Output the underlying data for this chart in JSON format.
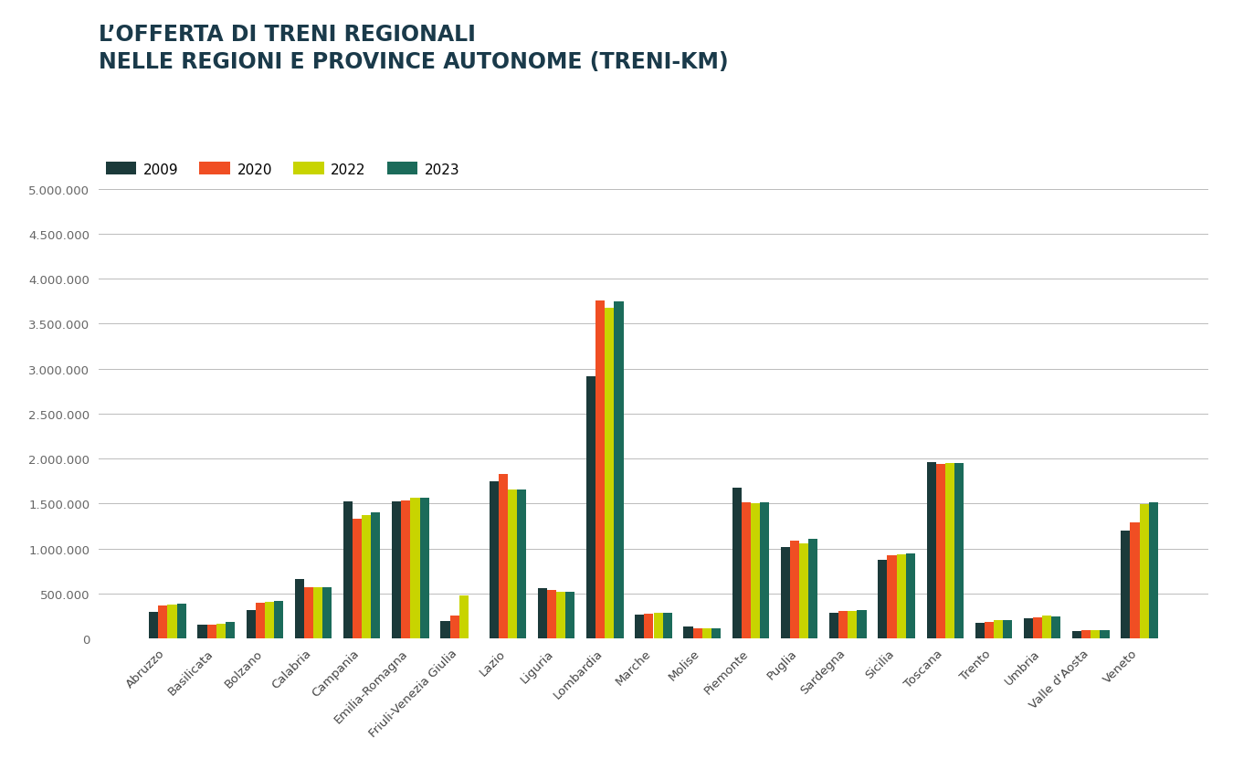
{
  "title_line1": "L’OFFERTA DI TRENI REGIONALI",
  "title_line2": "NELLE REGIONI E PROVINCE AUTONOME (TRENI-KM)",
  "background_color": "#ffffff",
  "series_labels": [
    "2009",
    "2020",
    "2022",
    "2023"
  ],
  "series_colors": [
    "#1b3a3a",
    "#f04e23",
    "#c8d400",
    "#1b6b5a"
  ],
  "categories": [
    "Abruzzo",
    "Basilicata",
    "Bolzano",
    "Calabria",
    "Campania",
    "Emilia-Romagna",
    "Friuli-Venezia Giulia",
    "Lazio",
    "Liguria",
    "Lombardia",
    "Marche",
    "Molise",
    "Piemonte",
    "Puglia",
    "Sardegna",
    "Sicilia",
    "Toscana",
    "Trento",
    "Umbria",
    "Valle d'Aosta",
    "Veneto"
  ],
  "data_2009": [
    300000,
    150000,
    320000,
    660000,
    1530000,
    1530000,
    200000,
    1750000,
    560000,
    2920000,
    270000,
    130000,
    1680000,
    1020000,
    290000,
    880000,
    1960000,
    180000,
    230000,
    80000,
    1200000
  ],
  "data_2020": [
    370000,
    150000,
    400000,
    570000,
    1330000,
    1540000,
    260000,
    1830000,
    540000,
    3760000,
    280000,
    110000,
    1510000,
    1090000,
    310000,
    930000,
    1940000,
    190000,
    240000,
    90000,
    1290000
  ],
  "data_2022": [
    380000,
    170000,
    410000,
    570000,
    1370000,
    1570000,
    480000,
    1660000,
    520000,
    3680000,
    285000,
    110000,
    1500000,
    1060000,
    310000,
    940000,
    1950000,
    205000,
    255000,
    95000,
    1490000
  ],
  "data_2023": [
    385000,
    185000,
    420000,
    575000,
    1400000,
    1570000,
    0,
    1660000,
    520000,
    3750000,
    285000,
    115000,
    1520000,
    1110000,
    315000,
    950000,
    1950000,
    205000,
    250000,
    95000,
    1510000
  ],
  "ylim": [
    0,
    5200000
  ],
  "yticks": [
    0,
    500000,
    1000000,
    1500000,
    2000000,
    2500000,
    3000000,
    3500000,
    4000000,
    4500000,
    5000000
  ],
  "ytick_labels": [
    "0",
    "500.000",
    "1.000.000",
    "1.500.000",
    "2.000.000",
    "2.500.000",
    "3.000.000",
    "3.500.000",
    "4.000.000",
    "4.500.000",
    "5.000.000"
  ],
  "title_color": "#1a3a4a",
  "title_fontsize": 17,
  "legend_fontsize": 11,
  "tick_fontsize": 9.5,
  "bar_width": 0.19,
  "grid_color": "#bbbbbb"
}
